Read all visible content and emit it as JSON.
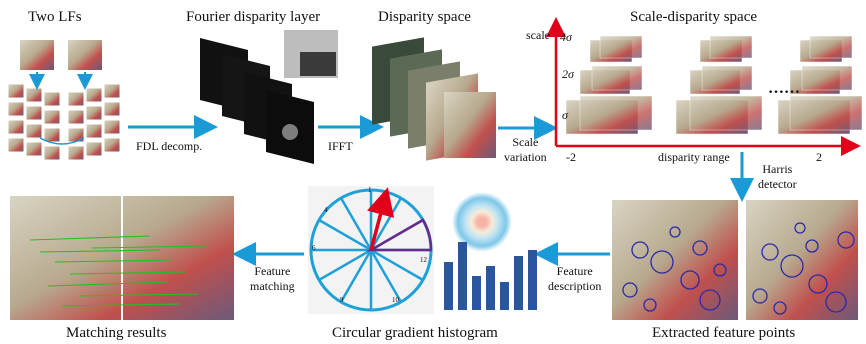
{
  "pipeline": {
    "two_lfs": "Two LFs",
    "fourier_layer": "Fourier disparity layer",
    "disparity_space": "Disparity space",
    "scale_disparity_space": "Scale-disparity space",
    "fdl_decomp": "FDL  decomp.",
    "ifft": "IFFT",
    "scale_variation": "Scale\nvariation",
    "harris_detector": "Harris\ndetector",
    "feature_description": "Feature\ndescription",
    "feature_matching": "Feature\nmatching",
    "extracted_feature_points": "Extracted feature points",
    "circular_gradient_histogram": "Circular gradient histogram",
    "matching_results": "Matching results"
  },
  "scale_axis": {
    "axis_label": "scale",
    "ticks": [
      "4σ",
      "2σ",
      "σ"
    ],
    "x_min": "-2",
    "x_max": "2",
    "x_label": "disparity range",
    "ellipsis": "……"
  },
  "circle_numbers": [
    "1",
    "2",
    "3",
    "4",
    "5",
    "6",
    "7",
    "8",
    "9",
    "10",
    "11",
    "12"
  ],
  "colors": {
    "arrow": "#1a9ad6",
    "axis": "#e0001a",
    "circle": "#1fa0d8",
    "histogram_bar": "#2a56a0",
    "feature_circle": "#2a2aa8"
  }
}
